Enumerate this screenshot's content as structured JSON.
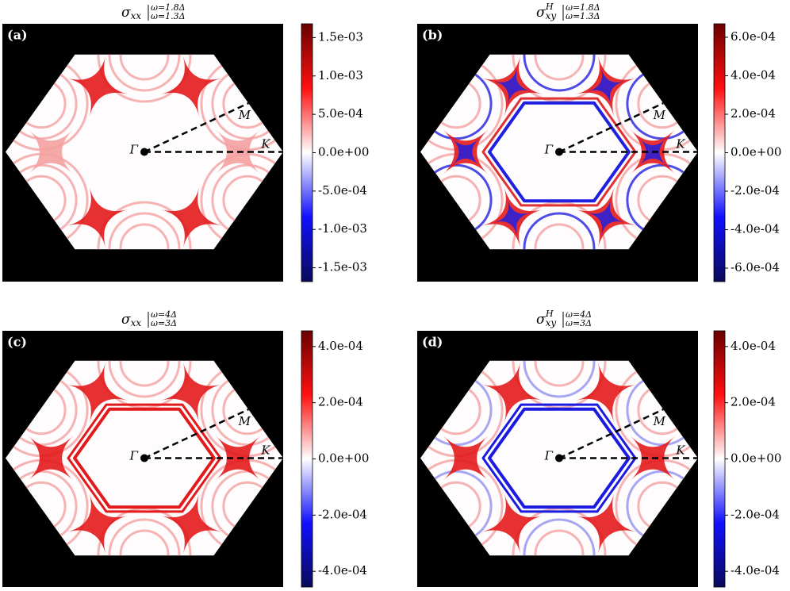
{
  "chart_data": [
    {
      "type": "heatmap",
      "panel_label": "(a)",
      "title": {
        "symbol": "σ",
        "sup": "",
        "sub": "xx",
        "upper": "ω=1.8Δ",
        "lower": "ω=1.3Δ"
      },
      "annotations": [
        "Γ",
        "M",
        "K"
      ],
      "cmap": [
        "#0a0a5a",
        "#1010ff",
        "#ffffff",
        "#ff1010",
        "#6a0000"
      ],
      "ylim": [
        -0.00168,
        0.00168
      ],
      "yticks": [
        {
          "value": 0.0015,
          "label": "1.5e-03"
        },
        {
          "value": 0.001,
          "label": "1.0e-03"
        },
        {
          "value": 0.0005,
          "label": "5.0e-04"
        },
        {
          "value": 0,
          "label": "0.0e+00"
        },
        {
          "value": -0.0005,
          "label": "-5.0e-04"
        },
        {
          "value": -0.001,
          "label": "-1.0e-03"
        },
        {
          "value": -0.0015,
          "label": "-1.5e-03"
        }
      ]
    },
    {
      "type": "heatmap",
      "panel_label": "(b)",
      "title": {
        "symbol": "σ",
        "sup": "H",
        "sub": "xy",
        "upper": "ω=1.8Δ",
        "lower": "ω=1.3Δ"
      },
      "annotations": [
        "Γ",
        "M",
        "K"
      ],
      "cmap": [
        "#0a0a5a",
        "#1010ff",
        "#ffffff",
        "#ff1010",
        "#6a0000"
      ],
      "ylim": [
        -0.00067,
        0.00067
      ],
      "yticks": [
        {
          "value": 0.0006,
          "label": "6.0e-04"
        },
        {
          "value": 0.0004,
          "label": "4.0e-04"
        },
        {
          "value": 0.0002,
          "label": "2.0e-04"
        },
        {
          "value": 0,
          "label": "0.0e+00"
        },
        {
          "value": -0.0002,
          "label": "-2.0e-04"
        },
        {
          "value": -0.0004,
          "label": "-4.0e-04"
        },
        {
          "value": -0.0006,
          "label": "-6.0e-04"
        }
      ]
    },
    {
      "type": "heatmap",
      "panel_label": "(c)",
      "title": {
        "symbol": "σ",
        "sup": "",
        "sub": "xx",
        "upper": "ω=4Δ",
        "lower": "ω=3Δ"
      },
      "annotations": [
        "Γ",
        "M",
        "K"
      ],
      "cmap": [
        "#0a0a5a",
        "#1010ff",
        "#ffffff",
        "#ff1010",
        "#6a0000"
      ],
      "ylim": [
        -0.000456,
        0.000456
      ],
      "yticks": [
        {
          "value": 0.0004,
          "label": "4.0e-04"
        },
        {
          "value": 0.0002,
          "label": "2.0e-04"
        },
        {
          "value": 0,
          "label": "0.0e+00"
        },
        {
          "value": -0.0002,
          "label": "-2.0e-04"
        },
        {
          "value": -0.0004,
          "label": "-4.0e-04"
        }
      ]
    },
    {
      "type": "heatmap",
      "panel_label": "(d)",
      "title": {
        "symbol": "σ",
        "sup": "H",
        "sub": "xy",
        "upper": "ω=4Δ",
        "lower": "ω=3Δ"
      },
      "annotations": [
        "Γ",
        "M",
        "K"
      ],
      "cmap": [
        "#0a0a5a",
        "#1010ff",
        "#ffffff",
        "#ff1010",
        "#6a0000"
      ],
      "ylim": [
        -0.000456,
        0.000456
      ],
      "yticks": [
        {
          "value": 0.0004,
          "label": "4.0e-04"
        },
        {
          "value": 0.0002,
          "label": "2.0e-04"
        },
        {
          "value": 0,
          "label": "0.0e+00"
        },
        {
          "value": -0.0002,
          "label": "-2.0e-04"
        },
        {
          "value": -0.0004,
          "label": "-4.0e-04"
        }
      ]
    }
  ]
}
